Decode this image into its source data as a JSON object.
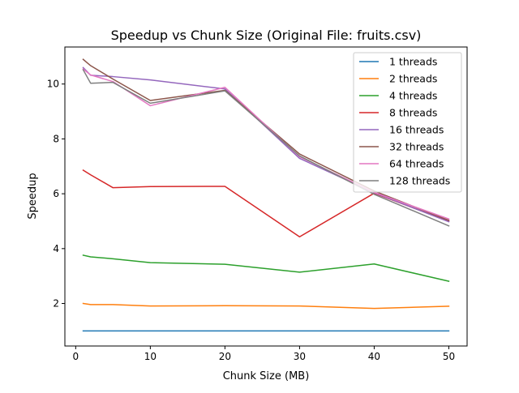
{
  "chart_data": {
    "type": "line",
    "title": "Speedup vs Chunk Size (Original File: fruits.csv)",
    "xlabel": "Chunk Size (MB)",
    "ylabel": "Speedup",
    "xlim": [
      -1.45,
      52.45
    ],
    "ylim": [
      0.45,
      11.35
    ],
    "xticks": [
      0,
      10,
      20,
      30,
      40,
      50
    ],
    "yticks": [
      2,
      4,
      6,
      8,
      10
    ],
    "grid": false,
    "legend_position": "top-right",
    "x": [
      1,
      2,
      5,
      10,
      20,
      30,
      40,
      50
    ],
    "series": [
      {
        "name": "1 threads",
        "color": "#1f77b4",
        "values": [
          1.0,
          1.0,
          1.0,
          1.0,
          1.0,
          1.0,
          1.0,
          1.0
        ]
      },
      {
        "name": "2 threads",
        "color": "#ff7f0e",
        "values": [
          2.0,
          1.96,
          1.96,
          1.91,
          1.92,
          1.91,
          1.82,
          1.9
        ]
      },
      {
        "name": "4 threads",
        "color": "#2ca02c",
        "values": [
          3.76,
          3.7,
          3.63,
          3.49,
          3.43,
          3.14,
          3.44,
          2.81
        ]
      },
      {
        "name": "8 threads",
        "color": "#d62728",
        "values": [
          6.86,
          6.69,
          6.22,
          6.26,
          6.27,
          4.43,
          6.02,
          5.0
        ]
      },
      {
        "name": "16 threads",
        "color": "#9467bd",
        "values": [
          10.6,
          10.32,
          10.27,
          10.15,
          9.82,
          7.29,
          6.04,
          4.98
        ]
      },
      {
        "name": "32 threads",
        "color": "#8c564b",
        "values": [
          10.9,
          10.67,
          10.18,
          9.4,
          9.77,
          7.45,
          6.1,
          5.03
        ]
      },
      {
        "name": "64 threads",
        "color": "#e377c2",
        "values": [
          10.55,
          10.33,
          10.09,
          9.21,
          9.88,
          7.35,
          6.05,
          5.08
        ]
      },
      {
        "name": "128 threads",
        "color": "#7f7f7f",
        "values": [
          10.52,
          10.03,
          10.06,
          9.3,
          9.75,
          7.38,
          5.98,
          4.83
        ]
      }
    ]
  }
}
